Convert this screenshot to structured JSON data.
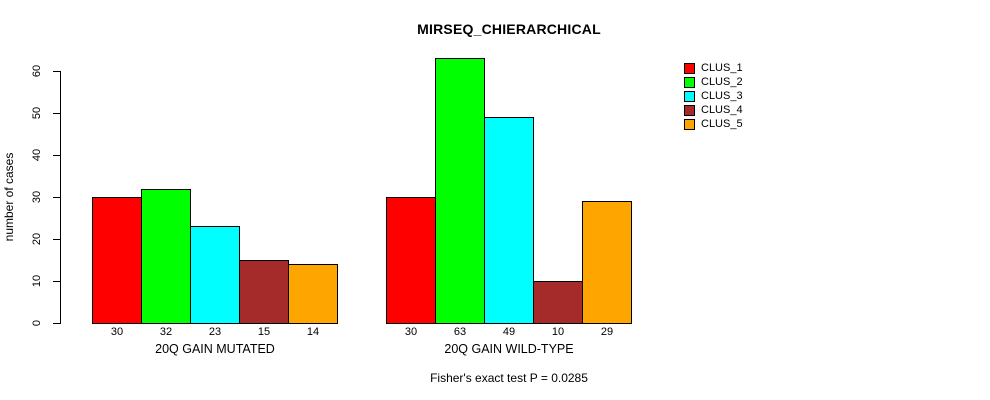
{
  "chart_data": {
    "type": "bar",
    "title": "MIRSEQ_CHIERARCHICAL",
    "ylabel": "number of cases",
    "xlabel": "",
    "ylim": [
      0,
      60
    ],
    "yticks": [
      0,
      10,
      20,
      30,
      40,
      50,
      60
    ],
    "categories": [
      "20Q GAIN MUTATED",
      "20Q GAIN WILD-TYPE"
    ],
    "series": [
      {
        "name": "CLUS_1",
        "color": "#ff0000",
        "values": [
          30,
          30
        ]
      },
      {
        "name": "CLUS_2",
        "color": "#00ff00",
        "values": [
          32,
          63
        ]
      },
      {
        "name": "CLUS_3",
        "color": "#00ffff",
        "values": [
          23,
          49
        ]
      },
      {
        "name": "CLUS_4",
        "color": "#a52a2a",
        "values": [
          15,
          10
        ]
      },
      {
        "name": "CLUS_5",
        "color": "#ffa500",
        "values": [
          14,
          29
        ]
      }
    ],
    "bar_value_labels": [
      [
        "30",
        "32",
        "23",
        "15",
        "14"
      ],
      [
        "30",
        "63",
        "49",
        "10",
        "29"
      ]
    ],
    "legend": {
      "position": "right",
      "entries": [
        "CLUS_1",
        "CLUS_2",
        "CLUS_3",
        "CLUS_4",
        "CLUS_5"
      ]
    },
    "grid": false,
    "annotation": "Fisher's exact test P = 0.0285"
  }
}
